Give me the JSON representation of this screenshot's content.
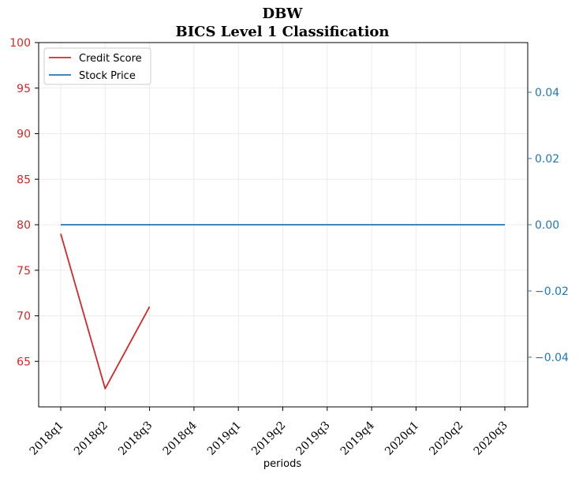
{
  "chart_data": {
    "type": "line",
    "title": "DBW",
    "subtitle": "BICS Level 1 Classification",
    "xlabel": "periods",
    "categories": [
      "2018q1",
      "2018q2",
      "2018q3",
      "2018q4",
      "2019q1",
      "2019q2",
      "2019q3",
      "2019q4",
      "2020q1",
      "2020q2",
      "2020q3"
    ],
    "left_axis": {
      "ylim": [
        60,
        100
      ],
      "ticks": [
        65,
        70,
        75,
        80,
        85,
        90,
        95,
        100
      ],
      "tick_labels": [
        "65",
        "70",
        "75",
        "80",
        "85",
        "90",
        "95",
        "100"
      ],
      "color": "#d62728"
    },
    "right_axis": {
      "ylim": [
        -0.055,
        0.055
      ],
      "ticks": [
        -0.04,
        -0.02,
        0.0,
        0.02,
        0.04
      ],
      "tick_labels": [
        "−0.04",
        "−0.02",
        "0.00",
        "0.02",
        "0.04"
      ],
      "color": "#1f77b4"
    },
    "series": [
      {
        "name": "Credit Score",
        "axis": "left",
        "color": "#d62728",
        "values": [
          79,
          62,
          71,
          null,
          null,
          null,
          null,
          null,
          null,
          null,
          null
        ]
      },
      {
        "name": "Stock Price",
        "axis": "right",
        "color": "#1f77b4",
        "values": [
          0,
          0,
          0,
          0,
          0,
          0,
          0,
          0,
          0,
          0,
          0
        ]
      }
    ],
    "legend_position": "top-left",
    "grid": true,
    "title_color": "#2f4f4f"
  }
}
